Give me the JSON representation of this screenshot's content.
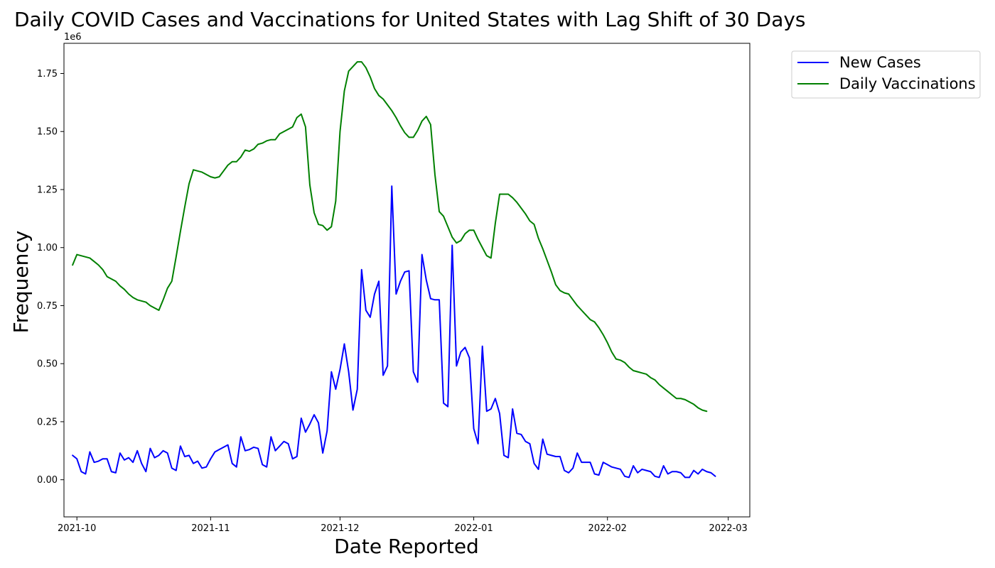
{
  "chart_data": {
    "type": "line",
    "title": "Daily COVID Cases and Vaccinations for United States with Lag Shift of 30 Days",
    "xlabel": "Date Reported",
    "ylabel": "Frequency",
    "y_offset_label": "1e6",
    "x_start_date": "2021-09-30",
    "xlim": [
      "2021-09-28",
      "2022-03-06"
    ],
    "ylim": [
      -0.16,
      1.88
    ],
    "x_ticks": [
      "2021-10",
      "2021-11",
      "2021-12",
      "2022-01",
      "2022-02",
      "2022-03"
    ],
    "y_ticks": [
      "0.00",
      "0.25",
      "0.50",
      "0.75",
      "1.00",
      "1.25",
      "1.50",
      "1.75"
    ],
    "legend_position": "outside-top-right",
    "grid": false,
    "series": [
      {
        "name": "New Cases",
        "color": "#0000ff",
        "values": [
          0.105,
          0.09,
          0.035,
          0.025,
          0.12,
          0.075,
          0.08,
          0.09,
          0.09,
          0.035,
          0.03,
          0.115,
          0.085,
          0.095,
          0.075,
          0.125,
          0.07,
          0.035,
          0.135,
          0.095,
          0.105,
          0.125,
          0.115,
          0.05,
          0.04,
          0.145,
          0.1,
          0.105,
          0.07,
          0.08,
          0.05,
          0.055,
          0.09,
          0.12,
          0.13,
          0.14,
          0.15,
          0.07,
          0.055,
          0.185,
          0.125,
          0.13,
          0.14,
          0.135,
          0.065,
          0.055,
          0.185,
          0.125,
          0.145,
          0.165,
          0.155,
          0.09,
          0.1,
          0.265,
          0.205,
          0.24,
          0.28,
          0.245,
          0.115,
          0.21,
          0.465,
          0.39,
          0.475,
          0.585,
          0.465,
          0.3,
          0.39,
          0.905,
          0.73,
          0.7,
          0.8,
          0.855,
          0.45,
          0.49,
          1.265,
          0.8,
          0.855,
          0.895,
          0.9,
          0.465,
          0.42,
          0.97,
          0.86,
          0.78,
          0.775,
          0.775,
          0.33,
          0.315,
          1.01,
          0.49,
          0.55,
          0.57,
          0.525,
          0.22,
          0.155,
          0.575,
          0.295,
          0.305,
          0.35,
          0.285,
          0.105,
          0.095,
          0.305,
          0.2,
          0.195,
          0.165,
          0.155,
          0.07,
          0.045,
          0.175,
          0.11,
          0.105,
          0.1,
          0.1,
          0.04,
          0.03,
          0.05,
          0.115,
          0.075,
          0.075,
          0.075,
          0.025,
          0.02,
          0.075,
          0.065,
          0.055,
          0.05,
          0.045,
          0.015,
          0.01,
          0.06,
          0.03,
          0.045,
          0.04,
          0.035,
          0.015,
          0.01,
          0.06,
          0.025,
          0.035,
          0.035,
          0.03,
          0.01,
          0.01,
          0.04,
          0.025,
          0.045,
          0.035,
          0.03,
          0.015
        ]
      },
      {
        "name": "Daily Vaccinations",
        "color": "#008000",
        "values": [
          0.925,
          0.97,
          0.965,
          0.96,
          0.955,
          0.94,
          0.925,
          0.905,
          0.875,
          0.865,
          0.855,
          0.835,
          0.82,
          0.8,
          0.785,
          0.775,
          0.77,
          0.765,
          0.75,
          0.74,
          0.73,
          0.775,
          0.825,
          0.855,
          0.96,
          1.07,
          1.175,
          1.275,
          1.335,
          1.33,
          1.325,
          1.315,
          1.305,
          1.3,
          1.305,
          1.33,
          1.355,
          1.37,
          1.37,
          1.39,
          1.42,
          1.415,
          1.425,
          1.445,
          1.45,
          1.46,
          1.465,
          1.465,
          1.49,
          1.5,
          1.51,
          1.52,
          1.56,
          1.575,
          1.52,
          1.27,
          1.15,
          1.1,
          1.095,
          1.075,
          1.09,
          1.2,
          1.5,
          1.675,
          1.76,
          1.78,
          1.8,
          1.8,
          1.775,
          1.735,
          1.685,
          1.655,
          1.64,
          1.615,
          1.59,
          1.56,
          1.525,
          1.495,
          1.475,
          1.475,
          1.505,
          1.545,
          1.565,
          1.53,
          1.315,
          1.155,
          1.135,
          1.09,
          1.045,
          1.02,
          1.03,
          1.06,
          1.075,
          1.075,
          1.035,
          1.0,
          0.965,
          0.955,
          1.105,
          1.23,
          1.23,
          1.23,
          1.215,
          1.195,
          1.17,
          1.145,
          1.115,
          1.1,
          1.04,
          0.995,
          0.945,
          0.895,
          0.84,
          0.815,
          0.805,
          0.8,
          0.775,
          0.75,
          0.73,
          0.71,
          0.69,
          0.68,
          0.655,
          0.625,
          0.59,
          0.55,
          0.52,
          0.515,
          0.505,
          0.485,
          0.47,
          0.465,
          0.46,
          0.455,
          0.44,
          0.43,
          0.41,
          0.395,
          0.38,
          0.365,
          0.35,
          0.35,
          0.345,
          0.335,
          0.325,
          0.31,
          0.3,
          0.295
        ]
      }
    ]
  }
}
